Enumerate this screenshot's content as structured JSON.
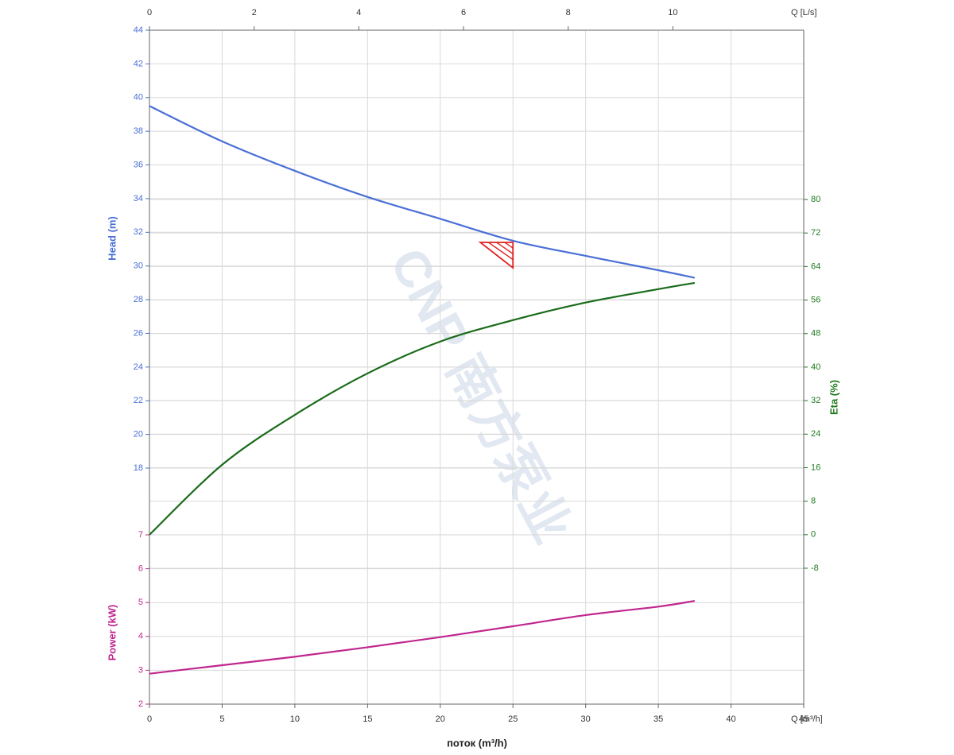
{
  "chart_data": {
    "type": "line",
    "x": [
      0,
      5,
      10,
      15,
      20,
      25,
      30,
      35,
      37.5
    ],
    "xlim": [
      0,
      45
    ],
    "xticks": [
      0,
      5,
      10,
      15,
      20,
      25,
      30,
      35,
      40,
      45
    ],
    "xlabel": "поток (m³/h)",
    "xunit_label": "Q [m³/h]",
    "x2lim": [
      0,
      12.5
    ],
    "x2ticks": [
      0,
      2,
      4,
      6,
      8,
      10
    ],
    "x2unit_label": "Q [L/s]",
    "grid": true,
    "axes": {
      "head": {
        "label": "Head (m)",
        "side": "left",
        "color": "#4a6fd6",
        "lim": [
          18,
          44
        ],
        "ticks": [
          18,
          20,
          22,
          24,
          26,
          28,
          30,
          32,
          34,
          36,
          38,
          40,
          42,
          44
        ]
      },
      "eta": {
        "label": "Eta (%)",
        "side": "right",
        "color": "#1f7a1f",
        "lim": [
          -8,
          80
        ],
        "ticks": [
          -8,
          0,
          8,
          16,
          24,
          32,
          40,
          48,
          56,
          64,
          72,
          80
        ]
      },
      "power": {
        "label": "Power (kW)",
        "side": "left",
        "color": "#c0268e",
        "lim": [
          2,
          7
        ],
        "ticks": [
          2,
          3,
          4,
          5,
          6,
          7
        ]
      }
    },
    "series": [
      {
        "name": "Head",
        "axis": "head",
        "color": "#4a6fd6",
        "values": [
          39.5,
          37.4,
          35.65,
          34.1,
          32.8,
          31.5,
          30.6,
          29.75,
          29.3
        ]
      },
      {
        "name": "Eta",
        "axis": "eta",
        "color": "#1a6b1a",
        "values": [
          0,
          16.7,
          28.6,
          38.5,
          46.1,
          51.2,
          55.4,
          58.6,
          60.1
        ]
      },
      {
        "name": "Power",
        "axis": "power",
        "color": "#c0268e",
        "values": [
          2.9,
          3.15,
          3.4,
          3.68,
          3.98,
          4.3,
          4.63,
          4.88,
          5.05
        ]
      }
    ],
    "duty_point": {
      "x": 25,
      "y": 31.4,
      "axis": "head",
      "color": "#e02020"
    },
    "watermark": "CNP 南方泵业"
  }
}
